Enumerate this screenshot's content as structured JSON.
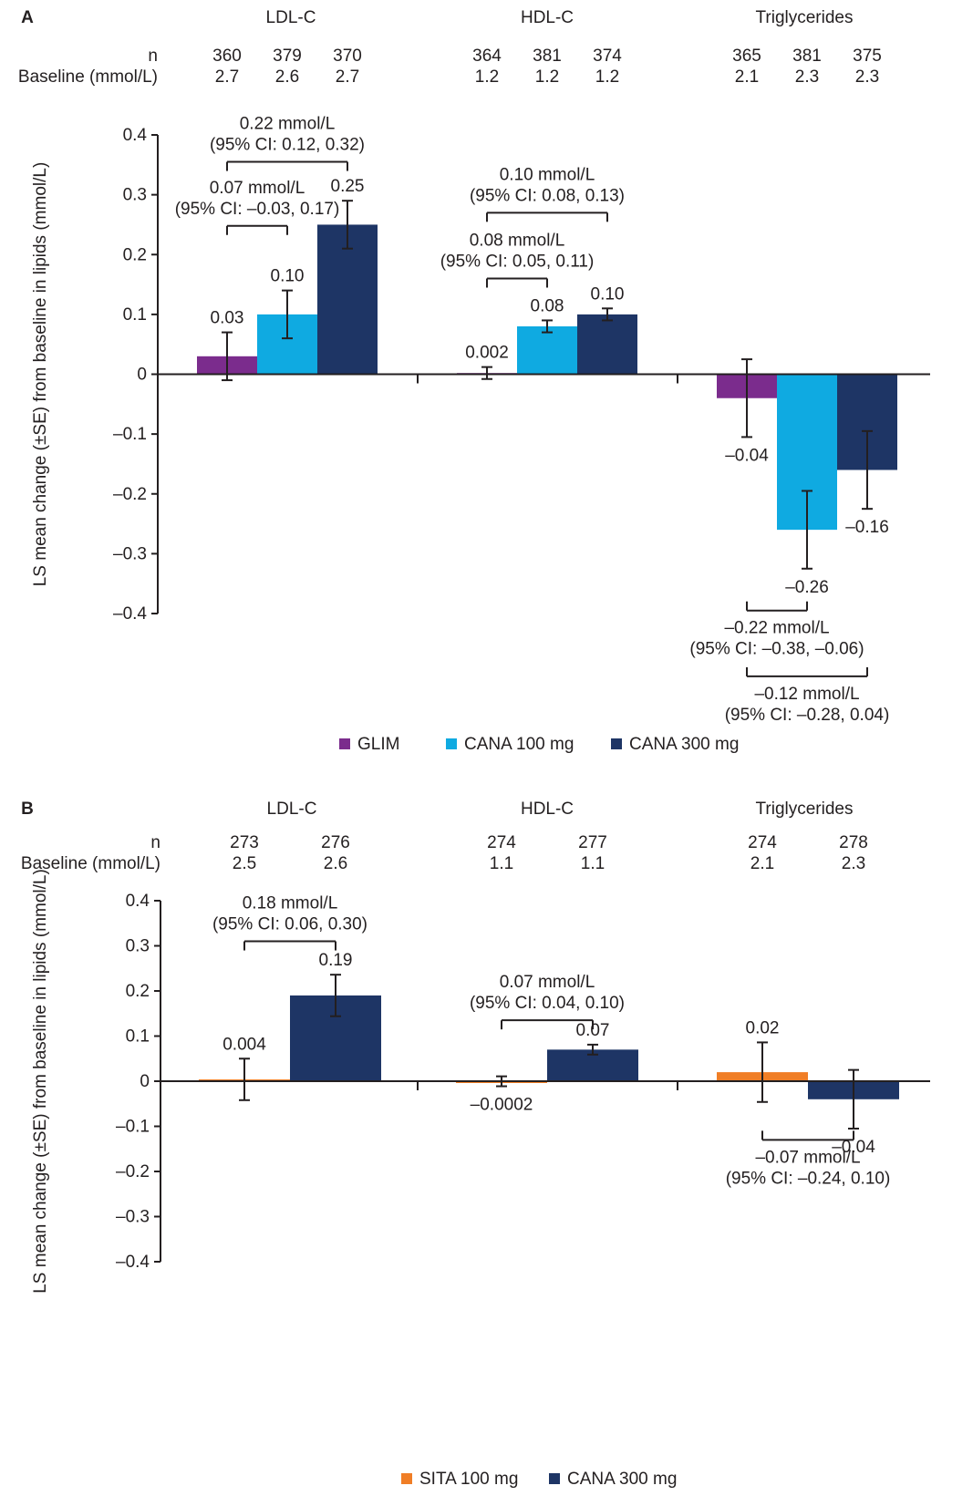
{
  "colors": {
    "GLIM": "#7b2c8d",
    "CANA 100 mg": "#0faae1",
    "CANA 300 mg": "#1e3565",
    "SITA 100 mg": "#f07e26",
    "text": "#231f20"
  },
  "chart_data": [
    {
      "type": "bar",
      "panel_label": "A",
      "ylabel": "LS mean change (±SE) from baseline in lipids (mmol/L)",
      "ylim": [
        -0.4,
        0.4
      ],
      "yticks": [
        0.4,
        0.3,
        0.2,
        0.1,
        0,
        -0.1,
        -0.2,
        -0.3,
        -0.4
      ],
      "ytick_labels": [
        "0.4",
        "0.3",
        "0.2",
        "0.1",
        "0",
        "–0.1",
        "–0.2",
        "–0.3",
        "–0.4"
      ],
      "n_label": "n",
      "baseline_label": "Baseline (mmol/L)",
      "categories": [
        "LDL-C",
        "HDL-C",
        "Triglycerides"
      ],
      "series": [
        {
          "name": "GLIM",
          "values": [
            0.03,
            0.002,
            -0.04
          ],
          "se": [
            0.04,
            0.01,
            0.065
          ],
          "labels": [
            "0.03",
            "0.002",
            "–0.04"
          ],
          "n": [
            "360",
            "364",
            "365"
          ],
          "baseline": [
            "2.7",
            "1.2",
            "2.1"
          ]
        },
        {
          "name": "CANA 100 mg",
          "values": [
            0.1,
            0.08,
            -0.26
          ],
          "se": [
            0.04,
            0.01,
            0.065
          ],
          "labels": [
            "0.10",
            "0.08",
            "–0.26"
          ],
          "n": [
            "379",
            "381",
            "381"
          ],
          "baseline": [
            "2.6",
            "1.2",
            "2.3"
          ]
        },
        {
          "name": "CANA 300 mg",
          "values": [
            0.25,
            0.1,
            -0.16
          ],
          "se": [
            0.04,
            0.01,
            0.065
          ],
          "labels": [
            "0.25",
            "0.10",
            "–0.16"
          ],
          "n": [
            "370",
            "374",
            "375"
          ],
          "baseline": [
            "2.7",
            "1.2",
            "2.3"
          ]
        }
      ],
      "annotations": [
        {
          "cat": 0,
          "from": 0,
          "to": 2,
          "side": "above",
          "level": 0.355,
          "line1": "0.22 mmol/L",
          "line2": "(95% CI: 0.12, 0.32)"
        },
        {
          "cat": 0,
          "from": 0,
          "to": 1,
          "side": "above",
          "level": 0.248,
          "line1": "0.07 mmol/L",
          "line2": "(95% CI: –0.03, 0.17)"
        },
        {
          "cat": 1,
          "from": 0,
          "to": 2,
          "side": "above",
          "level": 0.27,
          "line1": "0.10 mmol/L",
          "line2": "(95% CI: 0.08, 0.13)"
        },
        {
          "cat": 1,
          "from": 0,
          "to": 1,
          "side": "above",
          "level": 0.16,
          "line1": "0.08 mmol/L",
          "line2": "(95% CI: 0.05, 0.11)"
        },
        {
          "cat": 2,
          "from": 0,
          "to": 1,
          "side": "below",
          "level": -0.395,
          "line1": "–0.22 mmol/L",
          "line2": "(95% CI: –0.38, –0.06)"
        },
        {
          "cat": 2,
          "from": 0,
          "to": 2,
          "side": "below",
          "level": -0.505,
          "line1": "–0.12 mmol/L",
          "line2": "(95% CI: –0.28, 0.04)"
        }
      ]
    },
    {
      "type": "bar",
      "panel_label": "B",
      "ylabel": "LS mean change (±SE) from baseline in lipids (mmol/L)",
      "ylim": [
        -0.4,
        0.4
      ],
      "yticks": [
        0.4,
        0.3,
        0.2,
        0.1,
        0,
        -0.1,
        -0.2,
        -0.3,
        -0.4
      ],
      "ytick_labels": [
        "0.4",
        "0.3",
        "0.2",
        "0.1",
        "0",
        "–0.1",
        "–0.2",
        "–0.3",
        "–0.4"
      ],
      "n_label": "n",
      "baseline_label": "Baseline (mmol/L)",
      "categories": [
        "LDL-C",
        "HDL-C",
        "Triglycerides"
      ],
      "series": [
        {
          "name": "SITA 100 mg",
          "values": [
            0.004,
            -0.0002,
            0.02
          ],
          "se": [
            0.046,
            0.011,
            0.066
          ],
          "labels": [
            "0.004",
            "–0.0002",
            "0.02"
          ],
          "n": [
            "273",
            "274",
            "274"
          ],
          "baseline": [
            "2.5",
            "1.1",
            "2.1"
          ]
        },
        {
          "name": "CANA 300 mg",
          "values": [
            0.19,
            0.07,
            -0.04
          ],
          "se": [
            0.046,
            0.011,
            0.065
          ],
          "labels": [
            "0.19",
            "0.07",
            "–0.04"
          ],
          "n": [
            "276",
            "277",
            "278"
          ],
          "baseline": [
            "2.6",
            "1.1",
            "2.3"
          ]
        }
      ],
      "annotations": [
        {
          "cat": 0,
          "from": 0,
          "to": 1,
          "side": "above",
          "level": 0.31,
          "line1": "0.18 mmol/L",
          "line2": "(95% CI: 0.06, 0.30)"
        },
        {
          "cat": 1,
          "from": 0,
          "to": 1,
          "side": "above",
          "level": 0.135,
          "line1": "0.07 mmol/L",
          "line2": "(95% CI: 0.04, 0.10)"
        },
        {
          "cat": 2,
          "from": 0,
          "to": 1,
          "side": "below",
          "level": -0.13,
          "line1": "–0.07 mmol/L",
          "line2": "(95% CI: –0.24, 0.10)"
        }
      ]
    }
  ]
}
